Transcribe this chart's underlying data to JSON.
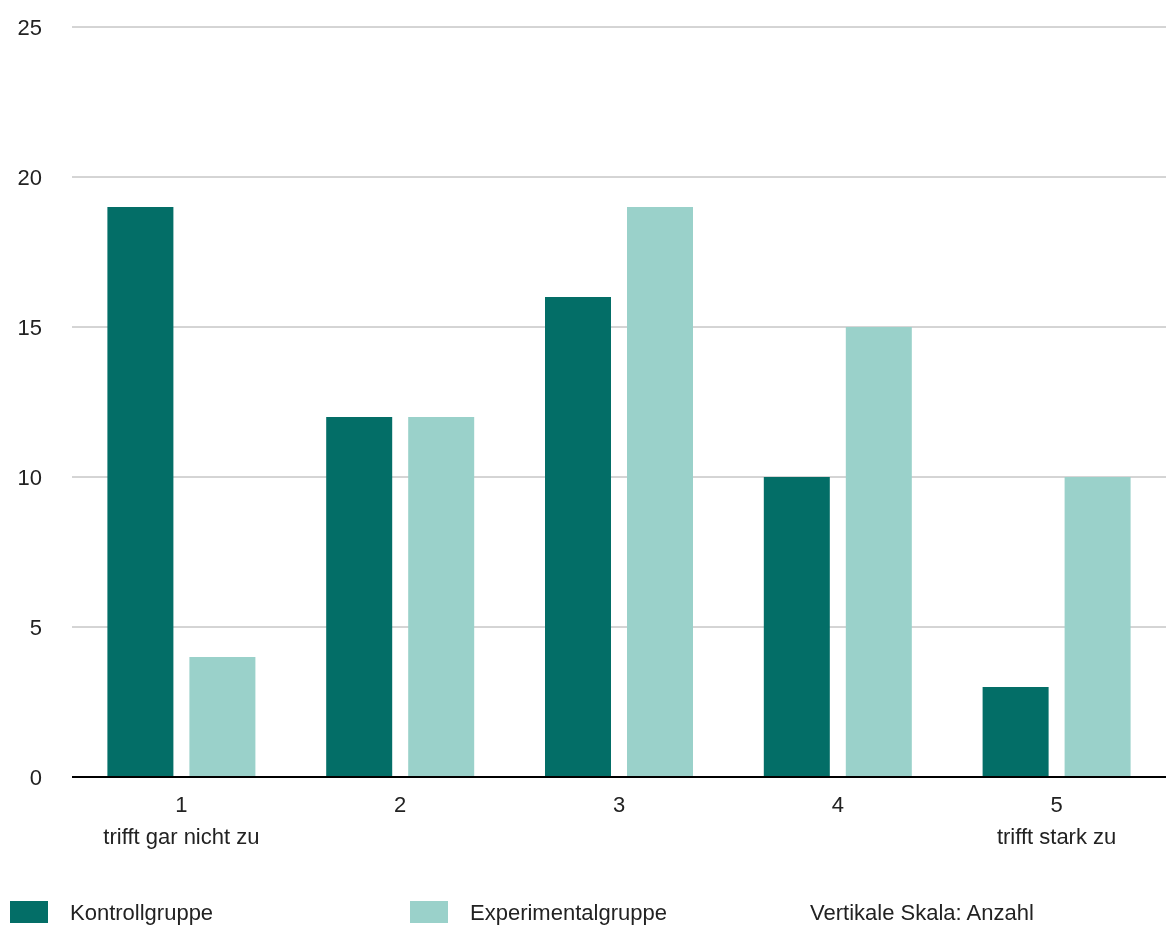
{
  "chart_data": {
    "type": "bar",
    "annotations": [
      "Vertikale Skala: Anzahl"
    ],
    "categories": [
      "1\ntrifft gar nicht zu",
      "2",
      "3",
      "4",
      "5\ntrifft stark zu"
    ],
    "series": [
      {
        "name": "Kontrollgruppe",
        "color": "#036e67",
        "values": [
          19,
          12,
          16,
          10,
          3
        ]
      },
      {
        "name": "Experimentalgruppe",
        "color": "#9ad1ca",
        "values": [
          4,
          12,
          19,
          15,
          10
        ]
      }
    ],
    "ylim": [
      0,
      25
    ],
    "yticks": [
      0,
      5,
      10,
      15,
      20,
      25
    ],
    "grid": "y",
    "legend": "bottom"
  }
}
